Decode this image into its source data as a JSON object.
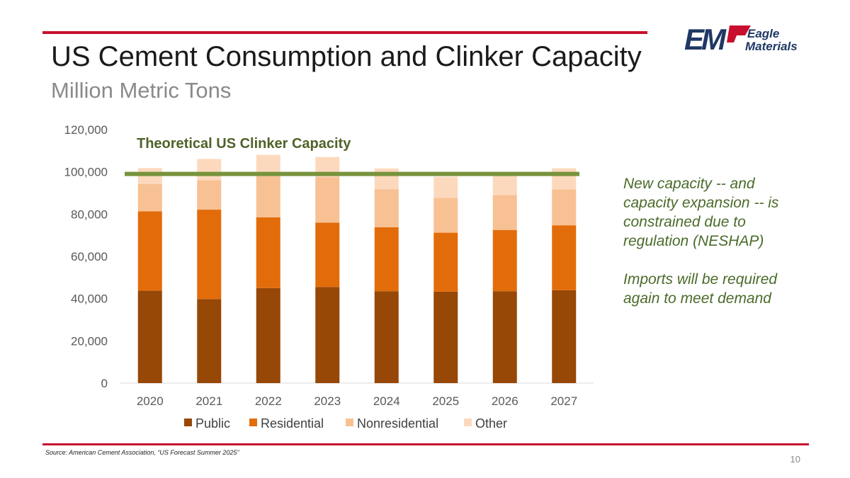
{
  "slide": {
    "title": "US Cement Consumption and Clinker Capacity",
    "subtitle": "Million Metric Tons",
    "source": "Source: American Cement Association, “US Forecast Summer 2025”",
    "page_number": "10",
    "notes": [
      "New capacity -- and capacity expansion -- is constrained due to regulation (NESHAP)",
      "Imports will be required again to meet demand"
    ]
  },
  "logo": {
    "monogram": "EM",
    "line1": "Eagle",
    "line2": "Materials"
  },
  "chart_data": {
    "type": "bar",
    "stacked": true,
    "categories": [
      "2020",
      "2021",
      "2022",
      "2023",
      "2024",
      "2025",
      "2026",
      "2027"
    ],
    "series": [
      {
        "name": "Public",
        "color": "#974706",
        "values": [
          43800,
          39800,
          45000,
          45500,
          43500,
          43300,
          43500,
          44000
        ]
      },
      {
        "name": "Residential",
        "color": "#e36c0a",
        "values": [
          37500,
          42300,
          33500,
          30500,
          30300,
          27900,
          29000,
          30700
        ]
      },
      {
        "name": "Nonresidential",
        "color": "#f8c194",
        "values": [
          13000,
          14000,
          19500,
          21500,
          18000,
          16500,
          16500,
          17000
        ]
      },
      {
        "name": "Other",
        "color": "#fcd9bd",
        "values": [
          7500,
          10000,
          10000,
          9500,
          9800,
          10000,
          10500,
          10000
        ]
      }
    ],
    "ylim": [
      0,
      120000
    ],
    "yticks": [
      0,
      20000,
      40000,
      60000,
      80000,
      100000,
      120000
    ],
    "ytick_labels": [
      "0",
      "20,000",
      "40,000",
      "60,000",
      "80,000",
      "100,000",
      "120,000"
    ],
    "reference_line": {
      "label": "Theoretical US Clinker Capacity",
      "value": 99000,
      "color": "#77933c"
    },
    "legend_position": "bottom",
    "xlabel": "",
    "ylabel": "",
    "grid": false
  }
}
